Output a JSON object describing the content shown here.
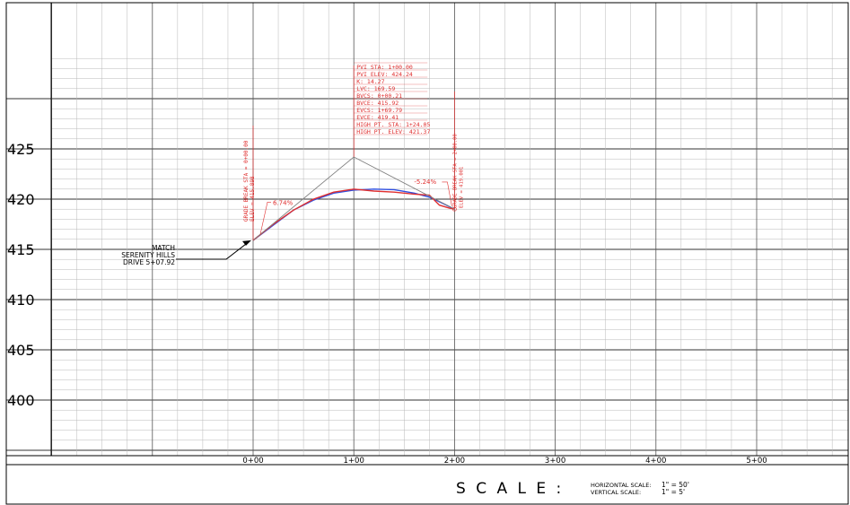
{
  "chart_data": {
    "type": "line",
    "y_ticks": [
      "425",
      "420",
      "415",
      "410",
      "405",
      "400"
    ],
    "x_ticks": [
      "0+00",
      "1+00",
      "2+00",
      "3+00",
      "4+00",
      "5+00"
    ],
    "xlim": [
      -2.48,
      5.86
    ],
    "ylim": [
      395,
      434.5
    ],
    "series": [
      {
        "color": "#3050e0",
        "x": [
          0.0,
          0.2,
          0.4,
          0.6,
          0.8,
          1.0,
          1.2,
          1.4,
          1.6,
          1.75,
          1.9,
          2.0
        ],
        "y": [
          415.9,
          417.4,
          418.9,
          419.9,
          420.6,
          420.9,
          421.0,
          420.95,
          420.6,
          420.2,
          419.5,
          419.0
        ]
      },
      {
        "color": "#e03030",
        "x": [
          0.0,
          0.2,
          0.4,
          0.6,
          0.8,
          1.0,
          1.2,
          1.4,
          1.6,
          1.75,
          1.85,
          1.95,
          2.0
        ],
        "y": [
          415.9,
          417.5,
          418.9,
          420.0,
          420.7,
          421.0,
          420.8,
          420.7,
          420.5,
          420.4,
          419.4,
          419.1,
          419.0
        ]
      },
      {
        "color": "#808080",
        "x": [
          0.0,
          1.0,
          2.0
        ],
        "y": [
          415.9,
          424.2,
          419.0
        ]
      }
    ],
    "annotations": {
      "grade_left": "6.74%",
      "grade_right": "-5.24%",
      "grade_break_lines": [
        "GRADE BREAK STA = 0+00.00",
        "ELEV = 415.898"
      ],
      "pvi_lines": [
        "PVI STA: 1+00.00",
        "PVI ELEV: 424.24",
        "K: 14.27",
        "LVC: 169.59",
        "BVCS: 0+00.21",
        "BVCE: 415.92",
        "EVCS: 1+69.79",
        "EVCE: 419.41",
        "HIGH PT. STA: 1+24.05",
        "HIGH PT. ELEV: 421.37"
      ],
      "right_lines": [
        "GRADE BREAK STA = 2+00.00",
        "ELEV = 419.001"
      ],
      "match_lines": [
        "MATCH",
        "SERENITY HILLS",
        "DRIVE 5+07.92"
      ]
    }
  },
  "scale": {
    "title": "S C A L E :",
    "horizontal_label": "HORIZONTAL SCALE:",
    "horizontal_value": "1\" = 50'",
    "vertical_label": "VERTICAL SCALE:",
    "vertical_value": "1\" = 5'"
  },
  "colors": {
    "grid": "#7a7a7a",
    "grid_minor": "#b8b8b8",
    "annotation": "#e03030",
    "frame": "#000000"
  }
}
